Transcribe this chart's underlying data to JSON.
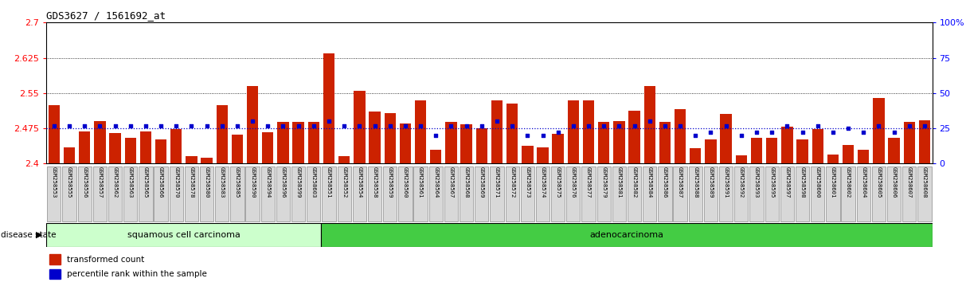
{
  "title": "GDS3627 / 1561692_at",
  "ylim_left": [
    2.4,
    2.7
  ],
  "ylim_right": [
    0,
    100
  ],
  "yticks_left": [
    2.4,
    2.475,
    2.55,
    2.625,
    2.7
  ],
  "yticks_right": [
    0,
    25,
    50,
    75,
    100
  ],
  "hlines_black": [
    2.55,
    2.625
  ],
  "blue_hline": 2.475,
  "categories": [
    "GSM258553",
    "GSM258555",
    "GSM258556",
    "GSM258557",
    "GSM258562",
    "GSM258563",
    "GSM258565",
    "GSM258566",
    "GSM258570",
    "GSM258578",
    "GSM258580",
    "GSM258583",
    "GSM258585",
    "GSM258590",
    "GSM258594",
    "GSM258596",
    "GSM258599",
    "GSM258603",
    "GSM258551",
    "GSM258552",
    "GSM258554",
    "GSM258558",
    "GSM258559",
    "GSM258560",
    "GSM258561",
    "GSM258564",
    "GSM258567",
    "GSM258568",
    "GSM258569",
    "GSM258571",
    "GSM258572",
    "GSM258573",
    "GSM258574",
    "GSM258575",
    "GSM258576",
    "GSM258577",
    "GSM258579",
    "GSM258581",
    "GSM258582",
    "GSM258584",
    "GSM258586",
    "GSM258587",
    "GSM258588",
    "GSM258589",
    "GSM258591",
    "GSM258592",
    "GSM258593",
    "GSM258595",
    "GSM258597",
    "GSM258598",
    "GSM258600",
    "GSM258601",
    "GSM258602",
    "GSM258604",
    "GSM258605",
    "GSM258606",
    "GSM258607",
    "GSM258608"
  ],
  "bar_values": [
    2.525,
    2.435,
    2.468,
    2.49,
    2.465,
    2.455,
    2.468,
    2.452,
    2.474,
    2.415,
    2.412,
    2.525,
    2.462,
    2.565,
    2.466,
    2.488,
    2.488,
    2.488,
    2.635,
    2.415,
    2.555,
    2.51,
    2.508,
    2.485,
    2.535,
    2.43,
    2.488,
    2.484,
    2.475,
    2.535,
    2.527,
    2.438,
    2.435,
    2.464,
    2.535,
    2.535,
    2.488,
    2.49,
    2.512,
    2.565,
    2.488,
    2.515,
    2.432,
    2.452,
    2.505,
    2.418,
    2.455,
    2.455,
    2.478,
    2.452,
    2.474,
    2.42,
    2.44,
    2.43,
    2.54,
    2.455,
    2.488,
    2.492
  ],
  "percentile_values": [
    27,
    27,
    27,
    27,
    27,
    27,
    27,
    27,
    27,
    27,
    27,
    27,
    27,
    30,
    27,
    27,
    27,
    27,
    30,
    27,
    27,
    27,
    27,
    27,
    27,
    20,
    27,
    27,
    27,
    30,
    27,
    20,
    20,
    22,
    27,
    27,
    27,
    27,
    27,
    30,
    27,
    27,
    20,
    22,
    27,
    20,
    22,
    22,
    27,
    22,
    27,
    22,
    25,
    22,
    27,
    22,
    27,
    27
  ],
  "squamous_count": 18,
  "adenocarcinoma_count": 40,
  "bar_color": "#cc2200",
  "percentile_color": "#0000cc",
  "squamous_color": "#ccffcc",
  "adeno_color": "#44cc44"
}
